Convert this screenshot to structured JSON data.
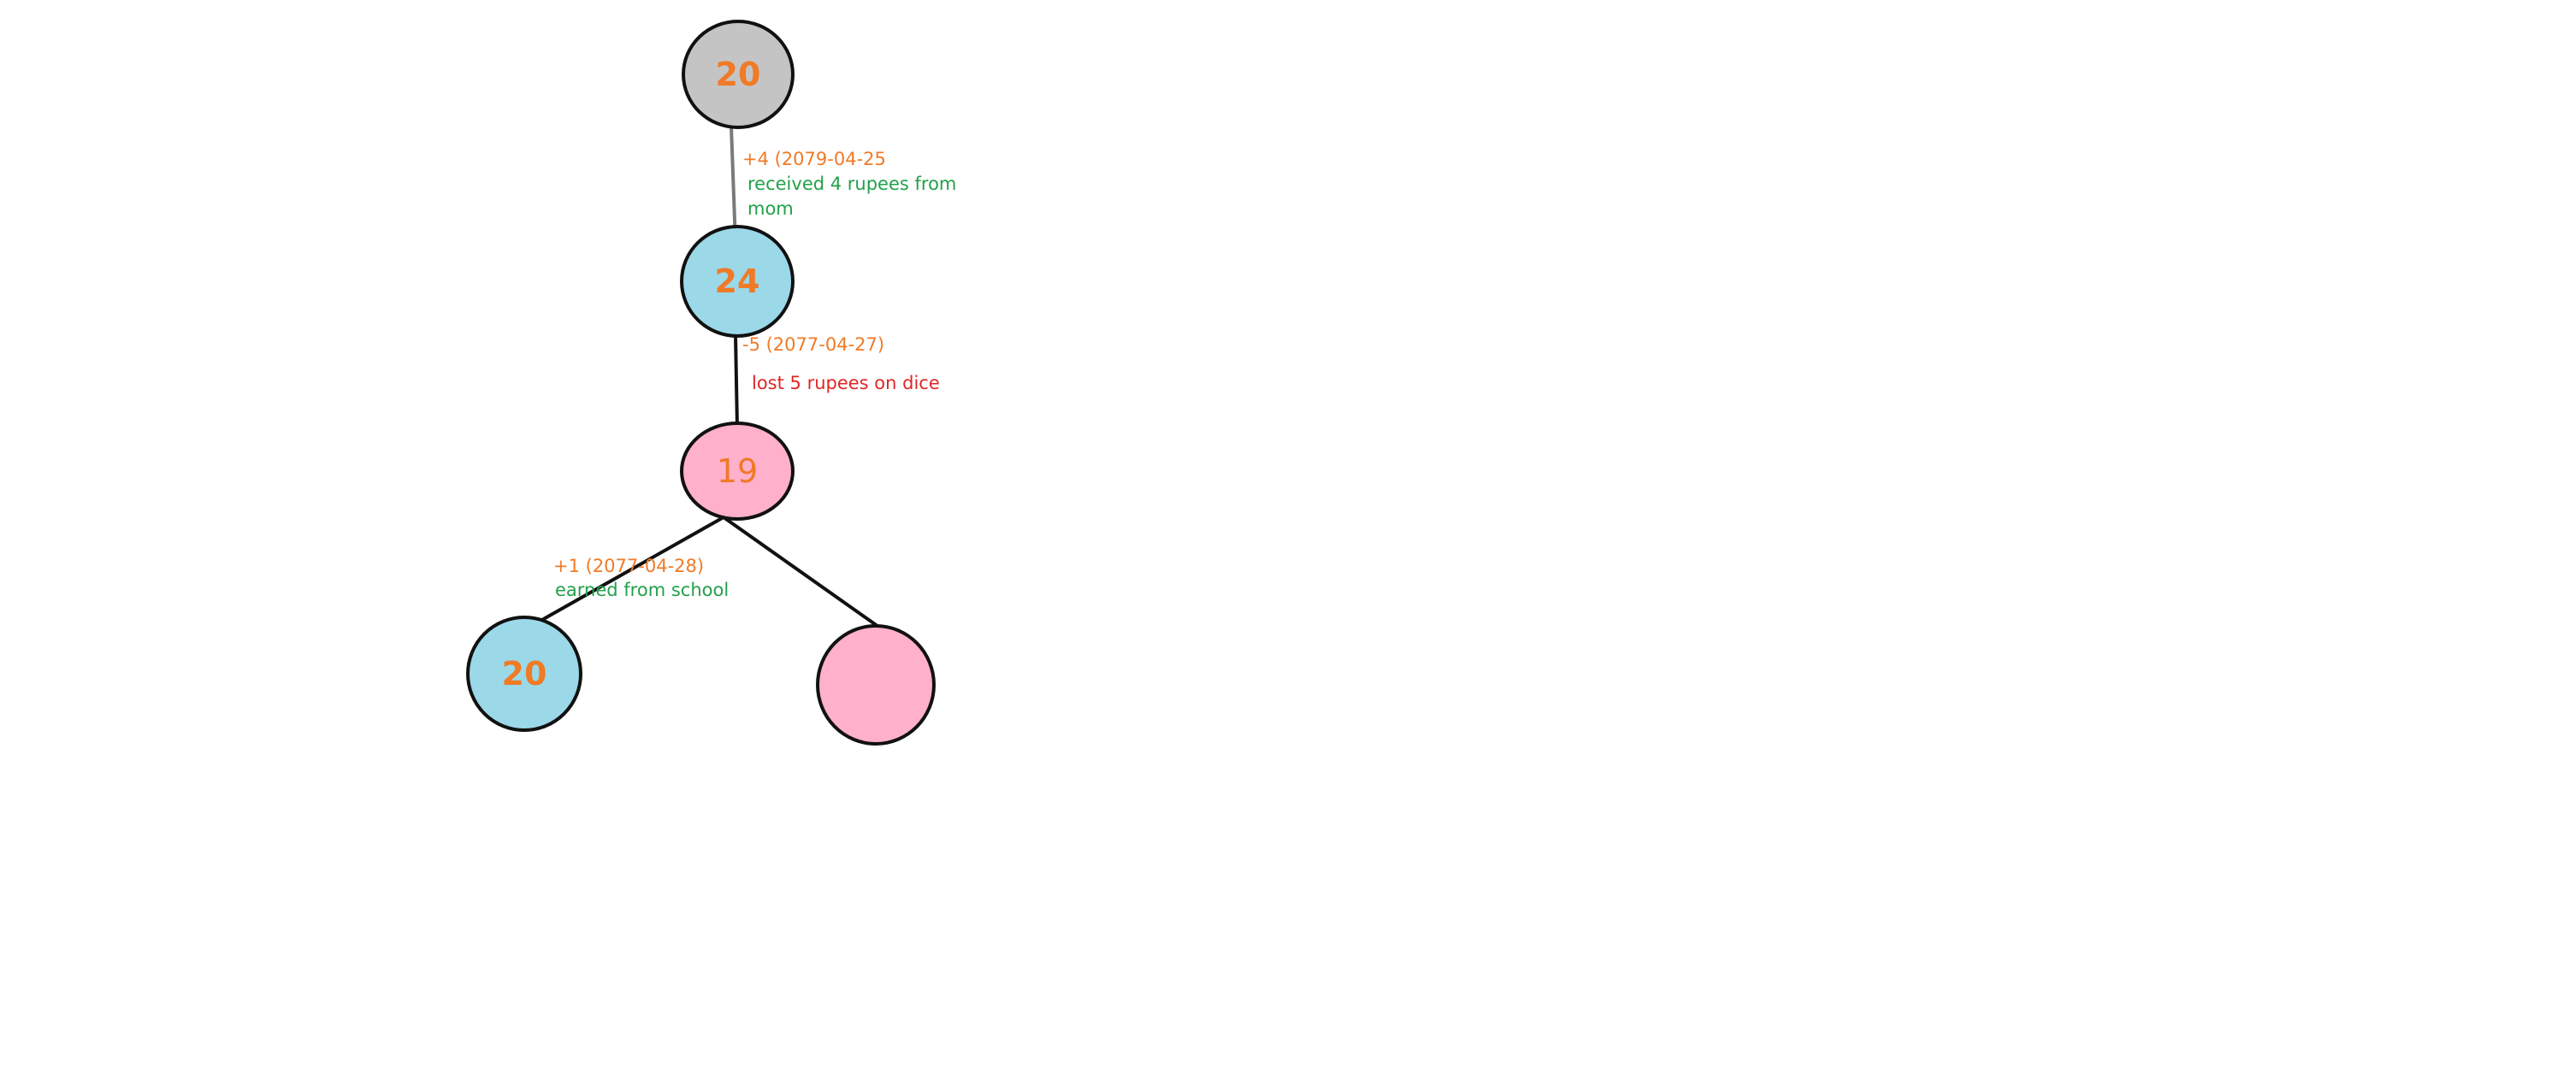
{
  "colors": {
    "value_text": "#f07a26",
    "delta_text": "#f07a26",
    "gain_note": "#22a04a",
    "loss_note": "#e02626",
    "root_fill": "#c4c4c4",
    "gain_fill": "#9bd8e8",
    "loss_fill": "#ffb0cb",
    "edge_primary": "#111111",
    "edge_secondary": "#7a7a7a"
  },
  "nodes": {
    "root": {
      "value": "20",
      "kind": "initial"
    },
    "n24": {
      "value": "24",
      "kind": "gain"
    },
    "n19": {
      "value": "19",
      "kind": "loss"
    },
    "n20": {
      "value": "20",
      "kind": "gain"
    },
    "empty": {
      "value": "",
      "kind": "loss"
    }
  },
  "edges": {
    "e1": {
      "delta": "+4 (2079-04-25",
      "note_line1": "received 4 rupees from",
      "note_line2": "mom",
      "note_kind": "gain"
    },
    "e2": {
      "delta": "-5 (2077-04-27)",
      "note_line1": "lost 5 rupees on dice",
      "note_kind": "loss"
    },
    "e3": {
      "delta": "+1 (2077-04-28)",
      "note_line1": "earned from school",
      "note_kind": "gain"
    }
  }
}
